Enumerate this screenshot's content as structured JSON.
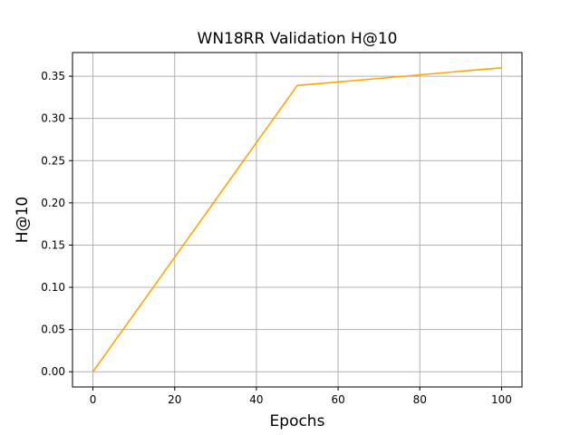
{
  "chart_data": {
    "type": "line",
    "title": "WN18RR Validation H@10",
    "xlabel": "Epochs",
    "ylabel": "H@10",
    "xlim": [
      -5,
      105
    ],
    "ylim": [
      -0.018,
      0.378
    ],
    "xticks": [
      0,
      20,
      40,
      60,
      80,
      100
    ],
    "xtick_labels": [
      "0",
      "20",
      "40",
      "60",
      "80",
      "100"
    ],
    "yticks": [
      0.0,
      0.05,
      0.1,
      0.15,
      0.2,
      0.25,
      0.3,
      0.35
    ],
    "ytick_labels": [
      "0.00",
      "0.05",
      "0.10",
      "0.15",
      "0.20",
      "0.25",
      "0.30",
      "0.35"
    ],
    "grid": true,
    "series": [
      {
        "color": "#ffa500",
        "x": [
          0,
          50,
          100
        ],
        "y": [
          0.0,
          0.339,
          0.36
        ]
      }
    ]
  }
}
